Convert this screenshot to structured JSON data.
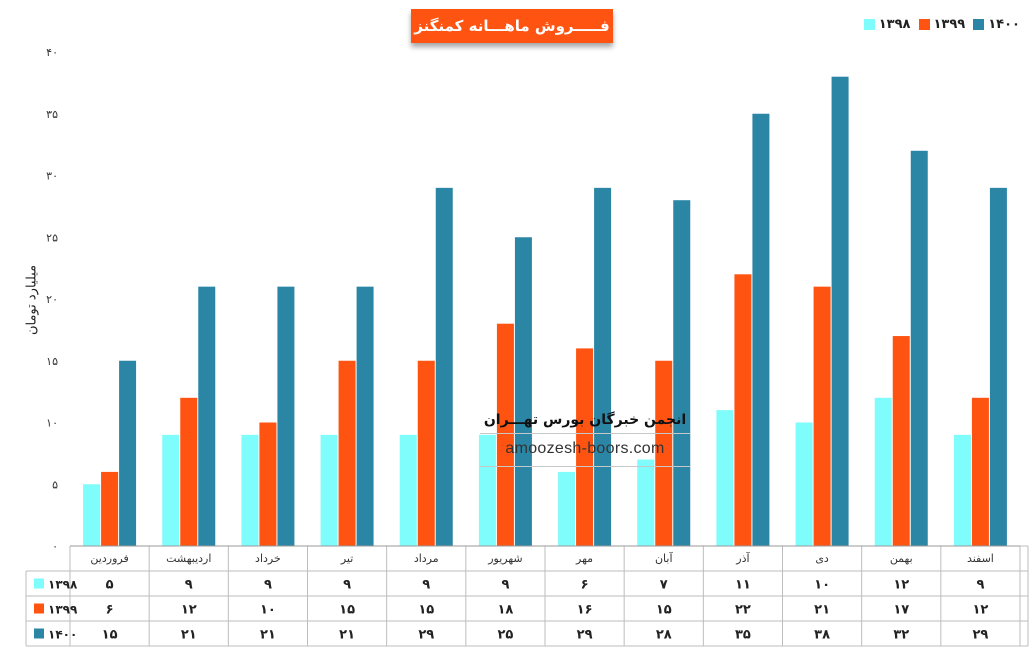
{
  "chart_data": {
    "type": "bar",
    "title": "فـــــروش ماهـــانه کمنگنز",
    "ylabel": "میلیارد تومان",
    "ylim": [
      0,
      40
    ],
    "yticks": [
      "۰",
      "۵",
      "۱۰",
      "۱۵",
      "۲۰",
      "۲۵",
      "۳۰",
      "۳۵",
      "۴۰"
    ],
    "grid": false,
    "legend_position": "top-right",
    "categories": [
      "فروردین",
      "اردیبهشت",
      "خرداد",
      "تیر",
      "مرداد",
      "شهریور",
      "مهر",
      "آبان",
      "آذر",
      "دی",
      "بهمن",
      "اسفند"
    ],
    "series": [
      {
        "name": "۱۳۹۸",
        "color": "#7ffcfc",
        "values": [
          5,
          9,
          9,
          9,
          9,
          9,
          6,
          7,
          11,
          10,
          12,
          9
        ],
        "labels": [
          "۵",
          "۹",
          "۹",
          "۹",
          "۹",
          "۹",
          "۶",
          "۷",
          "۱۱",
          "۱۰",
          "۱۲",
          "۹"
        ]
      },
      {
        "name": "۱۳۹۹",
        "color": "#ff5311",
        "values": [
          6,
          12,
          10,
          15,
          15,
          18,
          16,
          15,
          22,
          21,
          17,
          12
        ],
        "labels": [
          "۶",
          "۱۲",
          "۱۰",
          "۱۵",
          "۱۵",
          "۱۸",
          "۱۶",
          "۱۵",
          "۲۲",
          "۲۱",
          "۱۷",
          "۱۲"
        ]
      },
      {
        "name": "۱۴۰۰",
        "color": "#2b86a6",
        "values": [
          15,
          21,
          21,
          21,
          29,
          25,
          29,
          28,
          35,
          38,
          32,
          29
        ],
        "labels": [
          "۱۵",
          "۲۱",
          "۲۱",
          "۲۱",
          "۲۹",
          "۲۵",
          "۲۹",
          "۲۸",
          "۳۵",
          "۳۸",
          "۳۲",
          "۲۹"
        ]
      }
    ]
  },
  "watermark": {
    "title": "انجمن خبرگان بورس تهـــران",
    "url": "amoozesh-boors.com"
  }
}
